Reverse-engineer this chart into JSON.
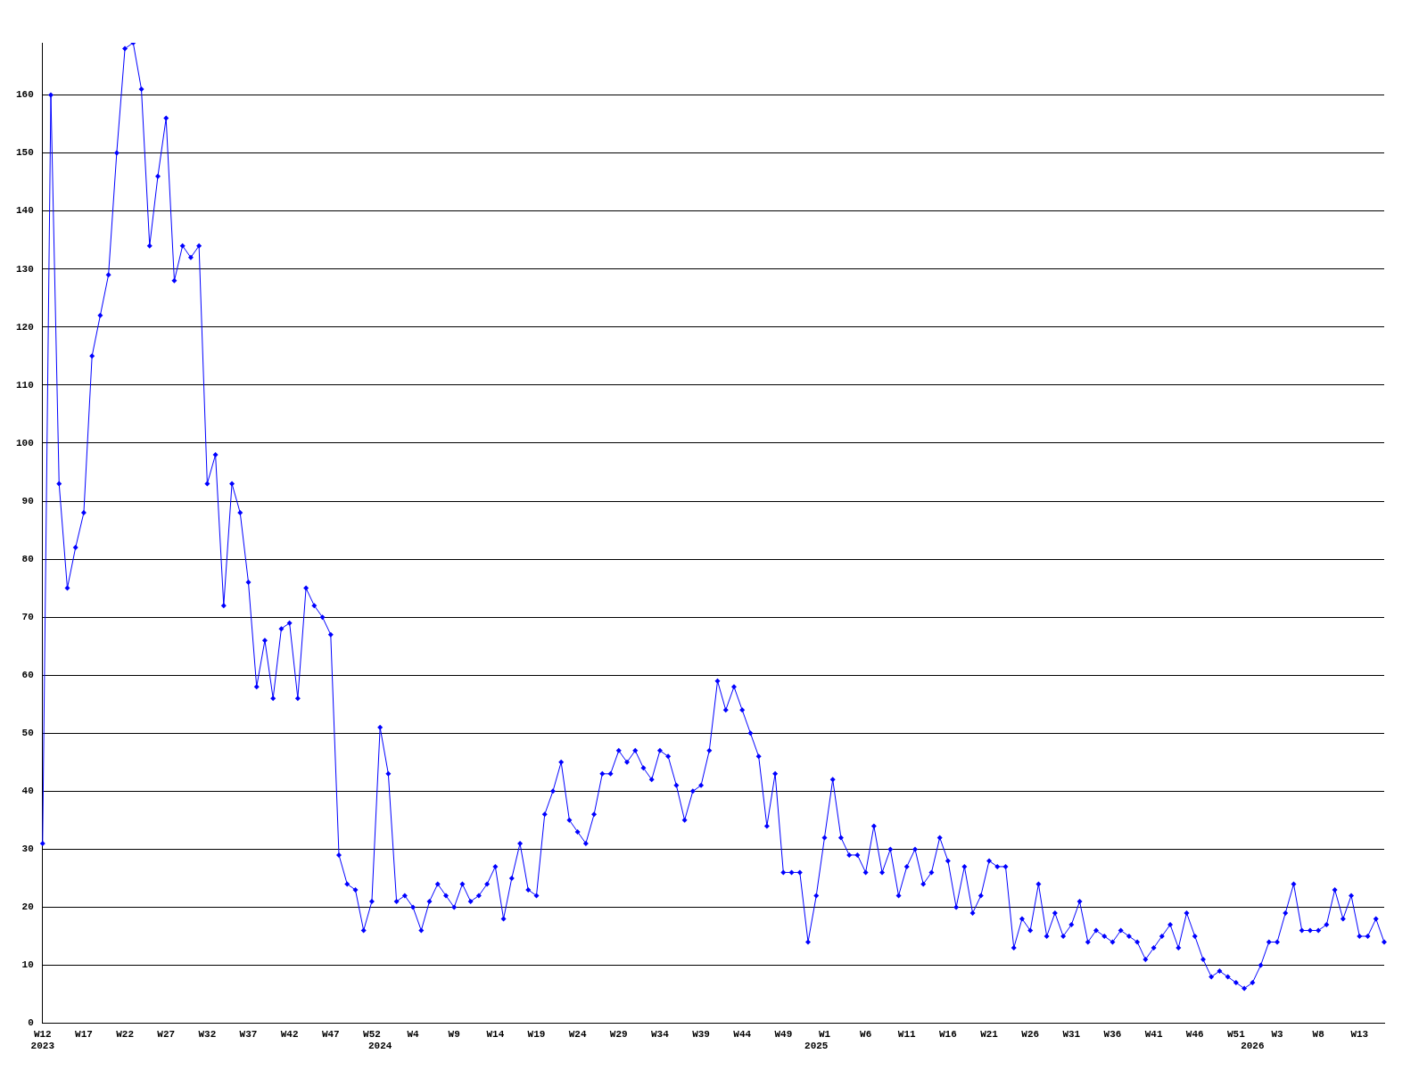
{
  "chart_data": {
    "type": "line",
    "categories": [
      "W12\n2023",
      null,
      null,
      null,
      null,
      "W17",
      null,
      null,
      null,
      null,
      "W22",
      null,
      null,
      null,
      null,
      "W27",
      null,
      null,
      null,
      null,
      "W32",
      null,
      null,
      null,
      null,
      "W37",
      null,
      null,
      null,
      null,
      "W42",
      null,
      null,
      null,
      null,
      "W47",
      null,
      null,
      null,
      null,
      "W52",
      "\n2024",
      null,
      null,
      null,
      "W4",
      null,
      null,
      null,
      null,
      "W9",
      null,
      null,
      null,
      null,
      "W14",
      null,
      null,
      null,
      null,
      "W19",
      null,
      null,
      null,
      null,
      "W24",
      null,
      null,
      null,
      null,
      "W29",
      null,
      null,
      null,
      null,
      "W34",
      null,
      null,
      null,
      null,
      "W39",
      null,
      null,
      null,
      null,
      "W44",
      null,
      null,
      null,
      null,
      "W49",
      null,
      null,
      null,
      "\n2025",
      "W1",
      null,
      null,
      null,
      null,
      "W6",
      null,
      null,
      null,
      null,
      "W11",
      null,
      null,
      null,
      null,
      "W16",
      null,
      null,
      null,
      null,
      "W21",
      null,
      null,
      null,
      null,
      "W26",
      null,
      null,
      null,
      null,
      "W31",
      null,
      null,
      null,
      null,
      "W36",
      null,
      null,
      null,
      null,
      "W41",
      null,
      null,
      null,
      null,
      "W46",
      null,
      null,
      null,
      null,
      "W51",
      null,
      "\n2026",
      null,
      null,
      "W3",
      null,
      null,
      null,
      null,
      "W8",
      null,
      null,
      null,
      null,
      "W13",
      null,
      null,
      null
    ],
    "values": [
      31,
      160,
      93,
      75,
      82,
      88,
      115,
      122,
      129,
      150,
      168,
      169,
      161,
      134,
      146,
      156,
      128,
      134,
      132,
      134,
      93,
      98,
      72,
      93,
      88,
      76,
      58,
      66,
      56,
      68,
      69,
      56,
      75,
      72,
      70,
      67,
      29,
      24,
      23,
      16,
      21,
      51,
      43,
      21,
      22,
      20,
      16,
      21,
      24,
      22,
      20,
      24,
      21,
      22,
      24,
      27,
      18,
      25,
      31,
      23,
      22,
      36,
      40,
      45,
      35,
      33,
      31,
      36,
      43,
      43,
      47,
      45,
      47,
      44,
      42,
      47,
      46,
      41,
      35,
      40,
      41,
      47,
      59,
      54,
      58,
      54,
      50,
      46,
      34,
      43,
      26,
      26,
      26,
      14,
      22,
      32,
      42,
      32,
      29,
      29,
      26,
      34,
      26,
      30,
      22,
      27,
      30,
      24,
      26,
      32,
      28,
      20,
      27,
      19,
      22,
      28,
      27,
      27,
      13,
      18,
      16,
      24,
      15,
      19,
      15,
      17,
      21,
      14,
      16,
      15,
      14,
      16,
      15,
      14,
      11,
      13,
      15,
      17,
      13,
      19,
      15,
      11,
      8,
      9,
      8,
      7,
      6,
      7,
      10,
      14,
      14,
      19,
      24,
      16,
      16,
      16,
      17,
      23,
      18,
      22,
      15,
      15,
      18,
      14
    ],
    "color": "#0000ff",
    "ylim": [
      0,
      169
    ],
    "yticks": [
      0,
      10,
      20,
      30,
      40,
      50,
      60,
      70,
      80,
      90,
      100,
      110,
      120,
      130,
      140,
      150,
      160
    ],
    "grid": "y",
    "marker": "diamond"
  }
}
